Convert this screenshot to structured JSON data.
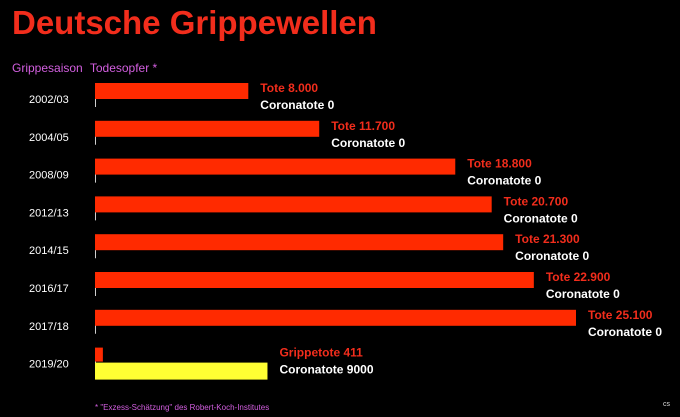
{
  "title": "Deutsche Grippewellen",
  "subheader": {
    "season_label": "Grippesaison",
    "deaths_label": "Todesopfer *"
  },
  "footnote": "* \"Exzess-Schätzung\" des Robert-Koch-Institutes",
  "signature": "cs",
  "colors": {
    "flu": "#ff2a00",
    "corona": "#ffff33",
    "flu_text": "#f22d1c",
    "corona_text": "#ffffff",
    "accent": "#d35fe0"
  },
  "chart_data": {
    "type": "bar",
    "orientation": "horizontal",
    "title": "Deutsche Grippewellen",
    "xlim": [
      0,
      25100
    ],
    "categories": [
      "2002/03",
      "2004/05",
      "2008/09",
      "2012/13",
      "2014/15",
      "2016/17",
      "2017/18",
      "2019/20"
    ],
    "series": [
      {
        "name": "Tote",
        "values": [
          8000,
          11700,
          18800,
          20700,
          21300,
          22900,
          25100,
          411
        ]
      },
      {
        "name": "Coronatote",
        "values": [
          0,
          0,
          0,
          0,
          0,
          0,
          0,
          9000
        ]
      }
    ],
    "labels": [
      {
        "deaths": "Tote 8.000",
        "corona": "Coronatote 0"
      },
      {
        "deaths": "Tote 11.700",
        "corona": "Coronatote 0"
      },
      {
        "deaths": "Tote 18.800",
        "corona": "Coronatote 0"
      },
      {
        "deaths": "Tote 20.700",
        "corona": "Coronatote 0"
      },
      {
        "deaths": "Tote 21.300",
        "corona": "Coronatote 0"
      },
      {
        "deaths": "Tote 22.900",
        "corona": "Coronatote 0"
      },
      {
        "deaths": "Tote 25.100",
        "corona": "Coronatote 0"
      },
      {
        "deaths": "Grippetote 411",
        "corona": "Coronatote 9000"
      }
    ]
  }
}
